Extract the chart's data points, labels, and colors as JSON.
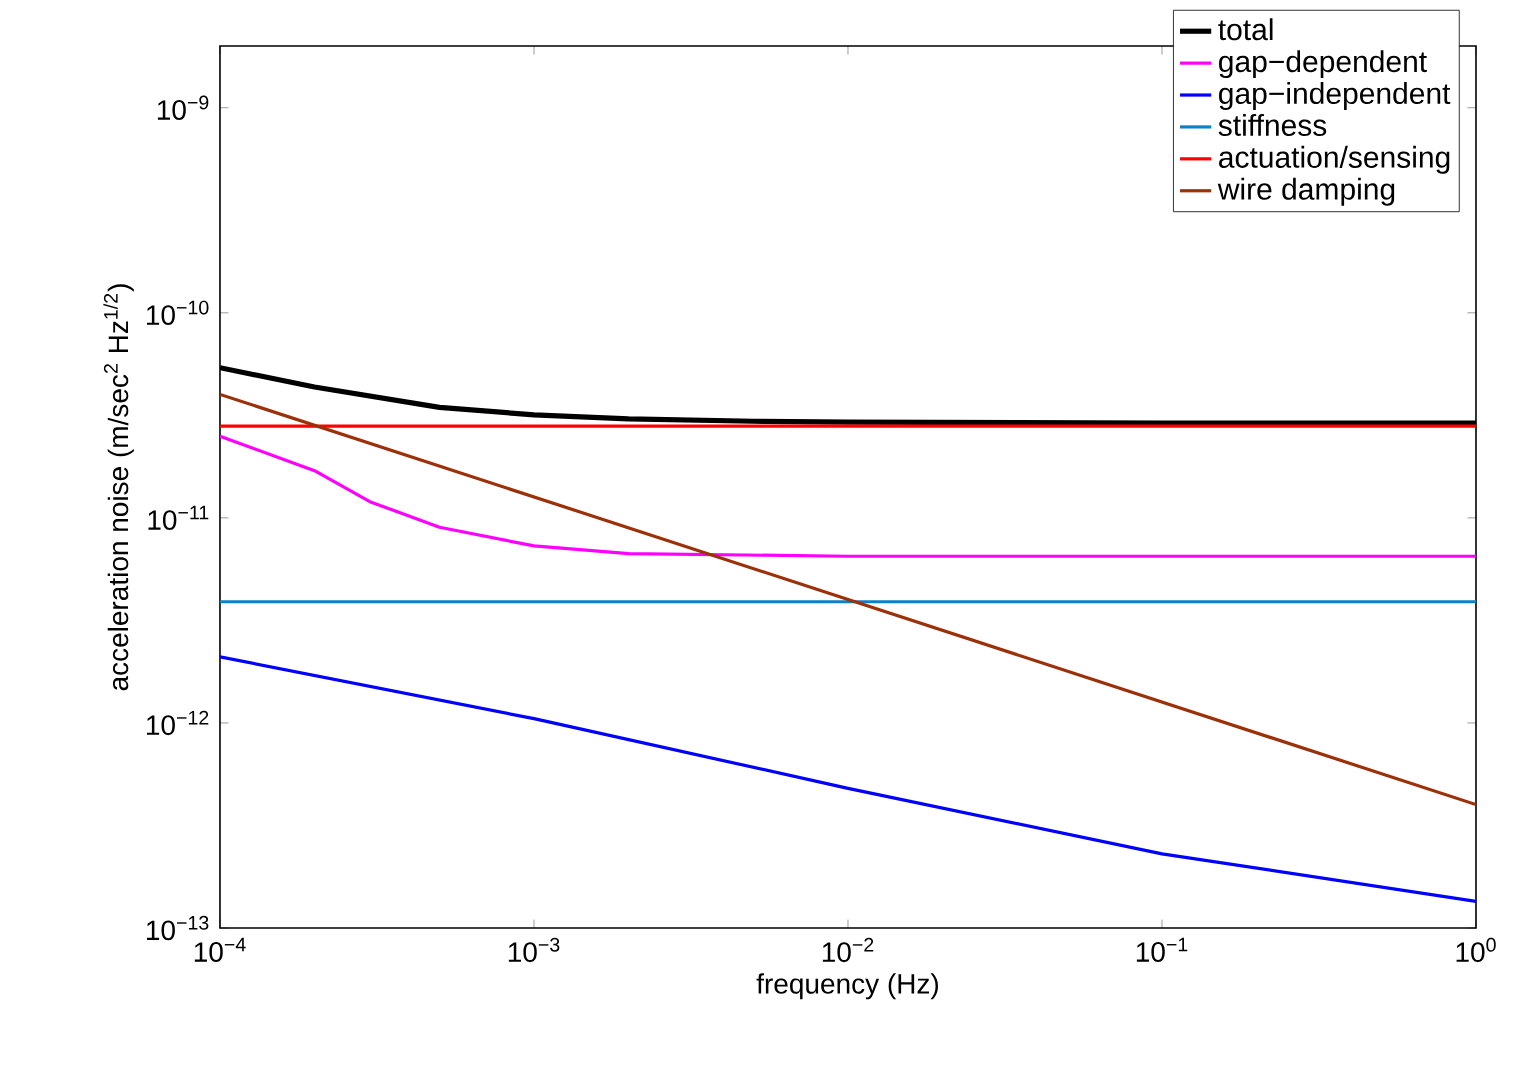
{
  "chart_data": {
    "type": "line",
    "xlabel": "frequency (Hz)",
    "ylabel": "acceleration noise (m/sec$^{2}$ Hz$^{1/2}$)",
    "log": "xy",
    "grid": false,
    "legend": "top right",
    "marker": "none",
    "xlim": [
      0.0001,
      1
    ],
    "ylim": [
      1e-13,
      2e-09
    ],
    "xticks": [
      {
        "value": 0.0001,
        "label": "10$^{−4}$"
      },
      {
        "value": 0.001,
        "label": "10$^{−3}$"
      },
      {
        "value": 0.01,
        "label": "10$^{−2}$"
      },
      {
        "value": 0.1,
        "label": "10$^{−1}$"
      },
      {
        "value": 1,
        "label": "10$^{0}$"
      }
    ],
    "yticks": [
      {
        "value": 1e-13,
        "label": "10$^{−13}$"
      },
      {
        "value": 1e-12,
        "label": "10$^{−12}$"
      },
      {
        "value": 1e-11,
        "label": "10$^{−11}$"
      },
      {
        "value": 1e-10,
        "label": "10$^{−10}$"
      },
      {
        "value": 1e-09,
        "label": "10$^{−9}$"
      }
    ],
    "series": [
      {
        "name": "total",
        "color": "#000000",
        "x": [
          0.0001,
          0.0002,
          0.0005,
          0.001,
          0.002,
          0.005,
          0.01,
          0.1,
          1
        ],
        "values": [
          5.4e-11,
          4.35e-11,
          3.46e-11,
          3.18e-11,
          3.04e-11,
          2.96e-11,
          2.93e-11,
          2.9e-11,
          2.9e-11
        ]
      },
      {
        "name": "gap−dependent",
        "color": "#ff00ff",
        "x": [
          0.0001,
          0.0002,
          0.0003,
          0.0005,
          0.001,
          0.002,
          0.01,
          1
        ],
        "values": [
          2.5e-11,
          1.7e-11,
          1.2e-11,
          9e-12,
          7.3e-12,
          6.7e-12,
          6.5e-12,
          6.5e-12
        ]
      },
      {
        "name": "gap−independent",
        "color": "#0000ff",
        "x": [
          0.0001,
          0.001,
          0.01,
          0.1,
          1
        ],
        "values": [
          2.1e-12,
          1.05e-12,
          4.8e-13,
          2.3e-13,
          1.35e-13
        ]
      },
      {
        "name": "stiffness",
        "color": "#0b80c4",
        "x": [
          0.0001,
          1
        ],
        "values": [
          3.9e-12,
          3.9e-12
        ]
      },
      {
        "name": "actuation/sensing",
        "color": "#ff0000",
        "x": [
          0.0001,
          1
        ],
        "values": [
          2.8e-11,
          2.8e-11
        ]
      },
      {
        "name": "wire damping",
        "color": "#9c3008",
        "x": [
          0.0001,
          1
        ],
        "values": [
          4e-11,
          4e-13
        ]
      }
    ]
  }
}
